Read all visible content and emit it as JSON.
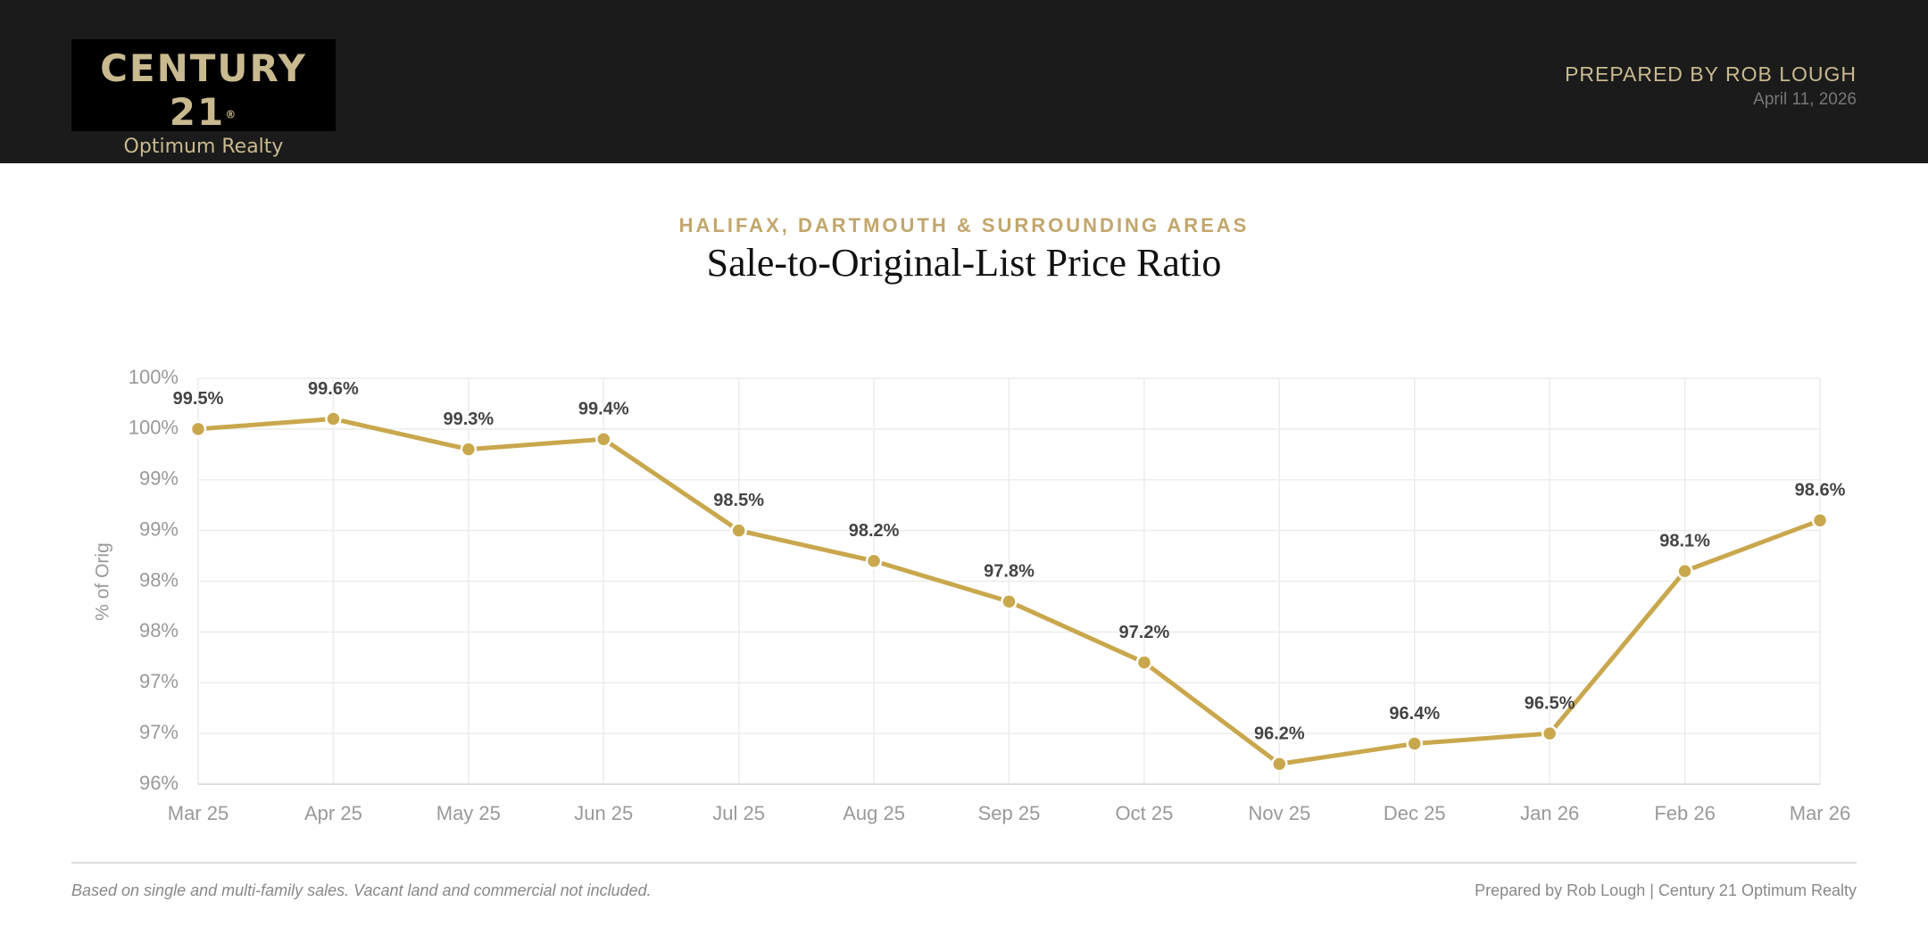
{
  "header": {
    "logo_name": "CENTURY 21",
    "logo_mark": "®",
    "logo_sub": "Optimum Realty",
    "prepared": "PREPARED BY ROB LOUGH",
    "date": "April 11, 2026"
  },
  "chart_data": {
    "type": "line",
    "subtitle": "HALIFAX, DARTMOUTH & SURROUNDING AREAS",
    "title": "Sale-to-Original-List Price Ratio",
    "y_label": "% of Orig",
    "categories": [
      "Mar 25",
      "Apr 25",
      "May 25",
      "Jun 25",
      "Jul 25",
      "Aug 25",
      "Sep 25",
      "Oct 25",
      "Nov 25",
      "Dec 25",
      "Jan 26",
      "Feb 26",
      "Mar 26"
    ],
    "values": [
      99.5,
      99.6,
      99.3,
      99.4,
      98.5,
      98.2,
      97.8,
      97.2,
      96.2,
      96.4,
      96.5,
      98.1,
      98.6
    ],
    "value_labels": [
      "99.5%",
      "99.6%",
      "99.3%",
      "99.4%",
      "98.5%",
      "98.2%",
      "97.8%",
      "97.2%",
      "96.2%",
      "96.4%",
      "96.5%",
      "98.1%",
      "98.6%"
    ],
    "color": "#c9a74d",
    "ylim": [
      96,
      100
    ],
    "yticks": [
      {
        "value": 96,
        "label": "96%"
      },
      {
        "value": 96.5,
        "label": "97%"
      },
      {
        "value": 97,
        "label": "97%"
      },
      {
        "value": 97.5,
        "label": "98%"
      },
      {
        "value": 98,
        "label": "98%"
      },
      {
        "value": 98.5,
        "label": "99%"
      },
      {
        "value": 99,
        "label": "99%"
      },
      {
        "value": 99.5,
        "label": "100%"
      },
      {
        "value": 100,
        "label": "100%"
      }
    ],
    "grid": true
  },
  "footer": {
    "note": "Based on single and multi-family sales. Vacant land and commercial not included.",
    "credit": "Prepared by Rob Lough | Century 21 Optimum Realty"
  }
}
